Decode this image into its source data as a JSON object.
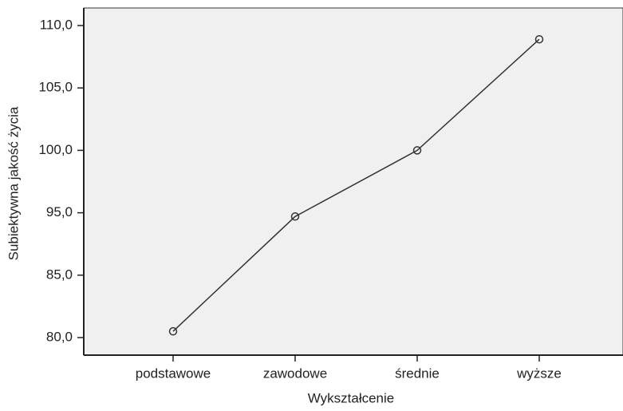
{
  "chart_data": {
    "type": "line",
    "x_label": "Wykształcenie",
    "y_label": "Subiektywna jakość życia",
    "categories": [
      "podstawowe",
      "zawodowe",
      "średnie",
      "wyższe"
    ],
    "values": [
      80.5,
      94.4,
      100.0,
      108.9
    ],
    "color": "#333333",
    "ylim": [
      80,
      110
    ],
    "yticks": [
      {
        "value": 80,
        "label": "80,0"
      },
      {
        "value": 85,
        "label": "85,0"
      },
      {
        "value": 95,
        "label": "95,0"
      },
      {
        "value": 100,
        "label": "100,0"
      },
      {
        "value": 105,
        "label": "105,0"
      },
      {
        "value": 110,
        "label": "110,0"
      }
    ],
    "grid": false
  }
}
